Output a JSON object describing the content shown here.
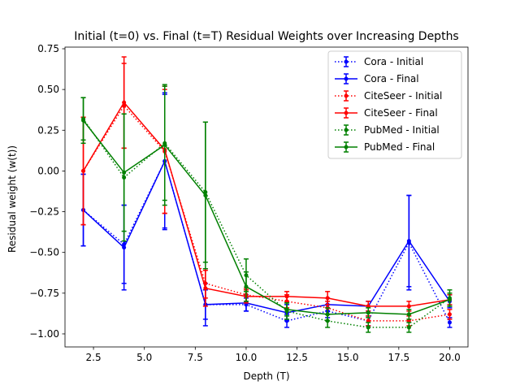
{
  "chart_data": {
    "type": "line",
    "title": "Initial (t=0) vs. Final (t=T) Residual Weights over Increasing Depths",
    "xlabel": "Depth (T)",
    "ylabel": "Residual weight (w(t))",
    "xlim": [
      1.1,
      20.9
    ],
    "ylim": [
      -1.08,
      0.76
    ],
    "xticks": [
      2.5,
      5.0,
      7.5,
      10.0,
      12.5,
      15.0,
      17.5,
      20.0
    ],
    "xtick_labels": [
      "2.5",
      "5.0",
      "7.5",
      "10.0",
      "12.5",
      "15.0",
      "17.5",
      "20.0"
    ],
    "yticks": [
      0.75,
      0.5,
      0.25,
      0.0,
      -0.25,
      -0.5,
      -0.75,
      -1.0
    ],
    "ytick_labels": [
      "0.75",
      "0.50",
      "0.25",
      "0.00",
      "−0.25",
      "−0.50",
      "−0.75",
      "−1.00"
    ],
    "legend_position": "top-right",
    "x": [
      2,
      4,
      6,
      8,
      10,
      12,
      14,
      16,
      18,
      20
    ],
    "series": [
      {
        "name": "Cora - Initial",
        "color": "#0000ff",
        "style": "dotted",
        "values": [
          -0.24,
          -0.45,
          0.06,
          -0.82,
          -0.82,
          -0.92,
          -0.86,
          -0.92,
          -0.44,
          -0.93
        ],
        "errors": [
          0.22,
          0.24,
          0.41,
          0.09,
          0.04,
          0.04,
          0.04,
          0.03,
          0.29,
          0.03
        ]
      },
      {
        "name": "Cora - Final",
        "color": "#0000ff",
        "style": "solid",
        "values": [
          -0.24,
          -0.47,
          0.06,
          -0.82,
          -0.81,
          -0.87,
          -0.82,
          -0.83,
          -0.43,
          -0.8
        ],
        "errors": [
          0.22,
          0.26,
          0.42,
          0.13,
          0.05,
          0.05,
          0.04,
          0.03,
          0.28,
          0.04
        ]
      },
      {
        "name": "CiteSeer - Initial",
        "color": "#ff0000",
        "style": "dotted",
        "values": [
          0.0,
          0.4,
          0.12,
          -0.69,
          -0.76,
          -0.8,
          -0.84,
          -0.92,
          -0.92,
          -0.88
        ],
        "errors": [
          0.33,
          0.26,
          0.38,
          0.09,
          0.04,
          0.04,
          0.04,
          0.03,
          0.03,
          0.03
        ]
      },
      {
        "name": "CiteSeer - Final",
        "color": "#ff0000",
        "style": "solid",
        "values": [
          0.0,
          0.42,
          0.13,
          -0.72,
          -0.77,
          -0.77,
          -0.78,
          -0.83,
          -0.83,
          -0.79
        ],
        "errors": [
          0.33,
          0.28,
          0.39,
          0.11,
          0.04,
          0.03,
          0.04,
          0.03,
          0.03,
          0.03
        ]
      },
      {
        "name": "PubMed - Initial",
        "color": "#008000",
        "style": "dotted",
        "values": [
          0.32,
          -0.04,
          0.17,
          -0.13,
          -0.64,
          -0.86,
          -0.92,
          -0.96,
          -0.96,
          -0.78
        ],
        "errors": [
          0.13,
          0.39,
          0.35,
          0.43,
          0.1,
          0.05,
          0.04,
          0.03,
          0.03,
          0.05
        ]
      },
      {
        "name": "PubMed - Final",
        "color": "#008000",
        "style": "solid",
        "values": [
          0.31,
          -0.01,
          0.16,
          -0.15,
          -0.71,
          -0.85,
          -0.88,
          -0.87,
          -0.88,
          -0.79
        ],
        "errors": [
          0.14,
          0.36,
          0.37,
          0.45,
          0.09,
          0.04,
          0.04,
          0.03,
          0.03,
          0.04
        ]
      }
    ]
  }
}
